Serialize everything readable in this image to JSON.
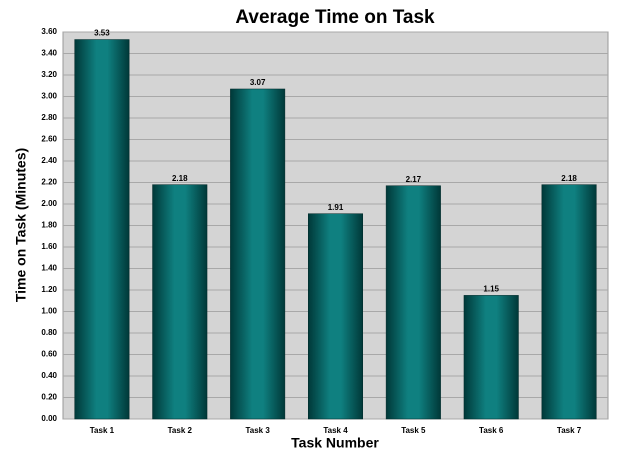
{
  "chart_data": {
    "type": "bar",
    "title": "Average Time on Task",
    "x_label": "Task Number",
    "y_label": "Time on Task (Minutes)",
    "categories": [
      "Task 1",
      "Task 2",
      "Task 3",
      "Task 4",
      "Task 5",
      "Task 6",
      "Task 7"
    ],
    "values": [
      3.53,
      2.18,
      3.07,
      1.91,
      2.17,
      1.15,
      2.18
    ],
    "color": "#0a6a6a",
    "ylim": [
      0,
      3.6
    ],
    "yticks": [
      {
        "value": 0,
        "label": "0.00"
      },
      {
        "value": 0.2,
        "label": "0.20"
      },
      {
        "value": 0.4,
        "label": "0.40"
      },
      {
        "value": 0.6,
        "label": "0.60"
      },
      {
        "value": 0.8,
        "label": "0.80"
      },
      {
        "value": 1.0,
        "label": "1.00"
      },
      {
        "value": 1.2,
        "label": "1.20"
      },
      {
        "value": 1.4,
        "label": "1.40"
      },
      {
        "value": 1.6,
        "label": "1.60"
      },
      {
        "value": 1.8,
        "label": "1.80"
      },
      {
        "value": 2.0,
        "label": "2.00"
      },
      {
        "value": 2.2,
        "label": "2.20"
      },
      {
        "value": 2.4,
        "label": "2.40"
      },
      {
        "value": 2.6,
        "label": "2.60"
      },
      {
        "value": 2.8,
        "label": "2.80"
      },
      {
        "value": 3.0,
        "label": "3.00"
      },
      {
        "value": 3.2,
        "label": "3.20"
      },
      {
        "value": 3.4,
        "label": "3.40"
      },
      {
        "value": 3.6,
        "label": "3.60"
      }
    ],
    "grid": true
  }
}
